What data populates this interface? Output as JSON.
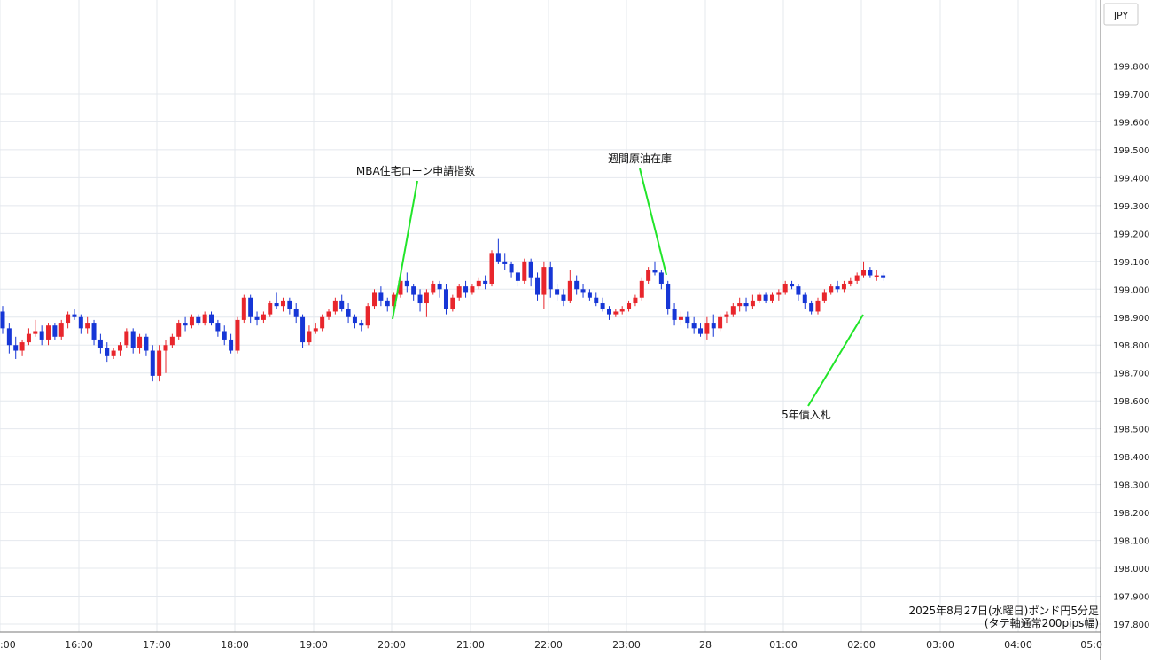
{
  "chart_data": {
    "type": "candlestick",
    "currency_label": "JPY",
    "caption_line1": "2025年8月27日(水曜日)ポンド円5分足",
    "caption_line2": "(タテ軸通常200pips幅)",
    "ylim": [
      197.8,
      199.9
    ],
    "y_ticks": [
      "199.800",
      "199.700",
      "199.600",
      "199.500",
      "199.400",
      "199.300",
      "199.200",
      "199.100",
      "199.000",
      "198.900",
      "198.800",
      "198.700",
      "198.600",
      "198.500",
      "198.400",
      "198.300",
      "198.200",
      "198.100",
      "198.000",
      "197.900",
      "197.800"
    ],
    "x_ticks": [
      ":00",
      "16:00",
      "17:00",
      "18:00",
      "19:00",
      "20:00",
      "21:00",
      "22:00",
      "23:00",
      "28",
      "01:00",
      "02:00",
      "03:00",
      "04:00",
      "05:0"
    ],
    "annotations": [
      {
        "text": "MBA住宅ローン申請指数",
        "anchor_time": "20:00"
      },
      {
        "text": "週間原油在庫",
        "anchor_time": "23:30"
      },
      {
        "text": "5年債入札",
        "anchor_time": "02:00"
      }
    ],
    "up_color": "#e8262c",
    "down_color": "#1636d6",
    "annotation_line_color": "#22e52a",
    "candles": [
      [
        198.92,
        198.94,
        198.84,
        198.86
      ],
      [
        198.86,
        198.88,
        198.77,
        198.8
      ],
      [
        198.8,
        198.83,
        198.75,
        198.78
      ],
      [
        198.78,
        198.82,
        198.76,
        198.81
      ],
      [
        198.81,
        198.86,
        198.8,
        198.84
      ],
      [
        198.84,
        198.89,
        198.83,
        198.85
      ],
      [
        198.85,
        198.87,
        198.8,
        198.82
      ],
      [
        198.82,
        198.88,
        198.8,
        198.87
      ],
      [
        198.87,
        198.88,
        198.82,
        198.83
      ],
      [
        198.83,
        198.89,
        198.82,
        198.88
      ],
      [
        198.88,
        198.92,
        198.86,
        198.91
      ],
      [
        198.91,
        198.93,
        198.89,
        198.9
      ],
      [
        198.9,
        198.91,
        198.84,
        198.86
      ],
      [
        198.86,
        198.9,
        198.84,
        198.88
      ],
      [
        198.88,
        198.89,
        198.8,
        198.82
      ],
      [
        198.82,
        198.84,
        198.77,
        198.79
      ],
      [
        198.79,
        198.81,
        198.74,
        198.76
      ],
      [
        198.76,
        198.79,
        198.75,
        198.78
      ],
      [
        198.78,
        198.81,
        198.76,
        198.8
      ],
      [
        198.8,
        198.86,
        198.79,
        198.85
      ],
      [
        198.85,
        198.86,
        198.77,
        198.79
      ],
      [
        198.79,
        198.84,
        198.77,
        198.83
      ],
      [
        198.83,
        198.84,
        198.76,
        198.78
      ],
      [
        198.78,
        198.8,
        198.67,
        198.69
      ],
      [
        198.69,
        198.8,
        198.67,
        198.78
      ],
      [
        198.78,
        198.82,
        198.7,
        198.8
      ],
      [
        198.8,
        198.84,
        198.79,
        198.83
      ],
      [
        198.83,
        198.89,
        198.82,
        198.88
      ],
      [
        198.88,
        198.9,
        198.85,
        198.87
      ],
      [
        198.87,
        198.91,
        198.86,
        198.9
      ],
      [
        198.9,
        198.91,
        198.87,
        198.88
      ],
      [
        198.88,
        198.92,
        198.87,
        198.91
      ],
      [
        198.91,
        198.92,
        198.87,
        198.88
      ],
      [
        198.88,
        198.89,
        198.83,
        198.85
      ],
      [
        198.85,
        198.87,
        198.8,
        198.82
      ],
      [
        198.82,
        198.84,
        198.77,
        198.78
      ],
      [
        198.78,
        198.9,
        198.77,
        198.89
      ],
      [
        198.89,
        198.98,
        198.88,
        198.97
      ],
      [
        198.97,
        198.98,
        198.88,
        198.9
      ],
      [
        198.9,
        198.92,
        198.87,
        198.89
      ],
      [
        198.89,
        198.92,
        198.88,
        198.91
      ],
      [
        198.91,
        198.96,
        198.9,
        198.95
      ],
      [
        198.95,
        198.99,
        198.93,
        198.94
      ],
      [
        198.94,
        198.97,
        198.92,
        198.96
      ],
      [
        198.96,
        198.97,
        198.91,
        198.93
      ],
      [
        198.93,
        198.95,
        198.88,
        198.9
      ],
      [
        198.9,
        198.91,
        198.79,
        198.81
      ],
      [
        198.81,
        198.87,
        198.8,
        198.85
      ],
      [
        198.85,
        198.88,
        198.84,
        198.86
      ],
      [
        198.86,
        198.91,
        198.85,
        198.9
      ],
      [
        198.9,
        198.93,
        198.89,
        198.92
      ],
      [
        198.92,
        198.97,
        198.91,
        198.96
      ],
      [
        198.96,
        198.98,
        198.92,
        198.93
      ],
      [
        198.93,
        198.95,
        198.88,
        198.9
      ],
      [
        198.9,
        198.91,
        198.86,
        198.88
      ],
      [
        198.88,
        198.89,
        198.85,
        198.87
      ],
      [
        198.87,
        198.95,
        198.86,
        198.94
      ],
      [
        198.94,
        199.0,
        198.93,
        198.99
      ],
      [
        198.99,
        199.01,
        198.94,
        198.96
      ],
      [
        198.96,
        198.97,
        198.92,
        198.94
      ],
      [
        198.94,
        198.99,
        198.93,
        198.98
      ],
      [
        198.98,
        199.05,
        198.97,
        199.03
      ],
      [
        199.03,
        199.06,
        198.99,
        199.01
      ],
      [
        199.01,
        199.02,
        198.96,
        198.98
      ],
      [
        198.98,
        199.0,
        198.92,
        198.95
      ],
      [
        198.95,
        199.0,
        198.9,
        198.99
      ],
      [
        198.99,
        199.03,
        198.98,
        199.02
      ],
      [
        199.02,
        199.03,
        198.97,
        199.0
      ],
      [
        199.0,
        199.02,
        198.91,
        198.93
      ],
      [
        198.93,
        198.98,
        198.92,
        198.97
      ],
      [
        198.97,
        199.02,
        198.96,
        199.01
      ],
      [
        199.01,
        199.03,
        198.97,
        198.99
      ],
      [
        198.99,
        199.02,
        198.98,
        199.01
      ],
      [
        199.01,
        199.04,
        199.0,
        199.03
      ],
      [
        199.03,
        199.05,
        199.0,
        199.02
      ],
      [
        199.02,
        199.14,
        199.01,
        199.13
      ],
      [
        199.13,
        199.18,
        199.09,
        199.1
      ],
      [
        199.1,
        199.13,
        199.07,
        199.09
      ],
      [
        199.09,
        199.1,
        199.04,
        199.06
      ],
      [
        199.06,
        199.07,
        199.01,
        199.03
      ],
      [
        199.03,
        199.11,
        199.02,
        199.1
      ],
      [
        199.1,
        199.11,
        199.01,
        199.04
      ],
      [
        199.04,
        199.06,
        198.96,
        198.98
      ],
      [
        198.98,
        199.1,
        198.93,
        199.08
      ],
      [
        199.08,
        199.1,
        198.97,
        199.0
      ],
      [
        199.0,
        199.02,
        198.96,
        198.98
      ],
      [
        198.98,
        199.0,
        198.94,
        198.96
      ],
      [
        198.96,
        199.07,
        198.95,
        199.03
      ],
      [
        199.03,
        199.05,
        198.98,
        199.0
      ],
      [
        199.0,
        199.02,
        198.97,
        198.99
      ],
      [
        198.99,
        199.0,
        198.96,
        198.97
      ],
      [
        198.97,
        198.99,
        198.94,
        198.95
      ],
      [
        198.95,
        198.97,
        198.92,
        198.93
      ],
      [
        198.93,
        198.94,
        198.89,
        198.91
      ],
      [
        198.91,
        198.93,
        198.9,
        198.92
      ],
      [
        198.92,
        198.94,
        198.91,
        198.93
      ],
      [
        198.93,
        198.96,
        198.92,
        198.95
      ],
      [
        198.95,
        198.98,
        198.94,
        198.97
      ],
      [
        198.97,
        199.04,
        198.96,
        199.03
      ],
      [
        199.03,
        199.08,
        199.02,
        199.07
      ],
      [
        199.07,
        199.1,
        199.05,
        199.06
      ],
      [
        199.06,
        199.07,
        199.0,
        199.02
      ],
      [
        199.02,
        199.03,
        198.91,
        198.93
      ],
      [
        198.93,
        198.95,
        198.87,
        198.89
      ],
      [
        198.89,
        198.92,
        198.87,
        198.9
      ],
      [
        198.9,
        198.92,
        198.86,
        198.88
      ],
      [
        198.88,
        198.9,
        198.84,
        198.86
      ],
      [
        198.86,
        198.88,
        198.83,
        198.84
      ],
      [
        198.84,
        198.9,
        198.82,
        198.88
      ],
      [
        198.88,
        198.91,
        198.83,
        198.86
      ],
      [
        198.86,
        198.91,
        198.85,
        198.9
      ],
      [
        198.9,
        198.92,
        198.88,
        198.91
      ],
      [
        198.91,
        198.95,
        198.9,
        198.94
      ],
      [
        198.94,
        198.97,
        198.92,
        198.95
      ],
      [
        198.95,
        198.97,
        198.92,
        198.94
      ],
      [
        198.94,
        198.98,
        198.93,
        198.96
      ],
      [
        198.96,
        198.99,
        198.95,
        198.98
      ],
      [
        198.98,
        198.99,
        198.95,
        198.96
      ],
      [
        198.96,
        198.99,
        198.95,
        198.98
      ],
      [
        198.98,
        199.0,
        198.96,
        198.99
      ],
      [
        198.99,
        199.03,
        198.98,
        199.02
      ],
      [
        199.02,
        199.03,
        199.0,
        199.01
      ],
      [
        199.01,
        199.02,
        198.96,
        198.98
      ],
      [
        198.98,
        198.99,
        198.93,
        198.95
      ],
      [
        198.95,
        198.96,
        198.91,
        198.92
      ],
      [
        198.92,
        198.97,
        198.91,
        198.96
      ],
      [
        198.96,
        199.0,
        198.95,
        198.99
      ],
      [
        198.99,
        199.02,
        198.98,
        199.01
      ],
      [
        199.01,
        199.03,
        198.99,
        199.0
      ],
      [
        199.0,
        199.03,
        198.99,
        199.02
      ],
      [
        199.02,
        199.04,
        199.01,
        199.03
      ],
      [
        199.03,
        199.06,
        199.02,
        199.05
      ],
      [
        199.05,
        199.1,
        199.04,
        199.07
      ],
      [
        199.07,
        199.08,
        199.04,
        199.05
      ],
      [
        199.05,
        199.07,
        199.03,
        199.05
      ],
      [
        199.05,
        199.06,
        199.03,
        199.04
      ]
    ]
  }
}
